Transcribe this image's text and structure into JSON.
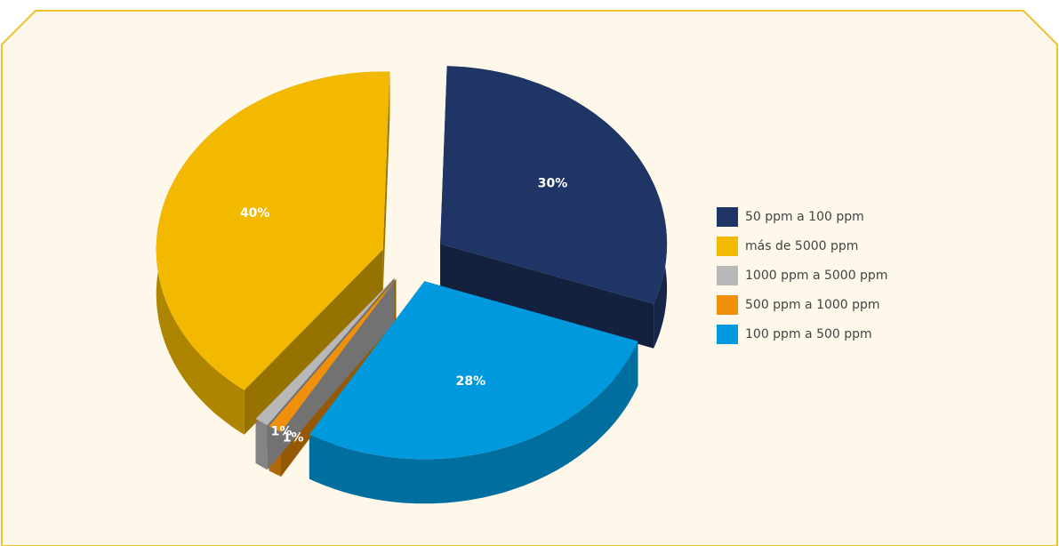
{
  "chart_data": {
    "type": "pie",
    "categories": [
      "50 ppm a 100 ppm",
      "más de 5000 ppm",
      "1000 ppm a 5000 ppm",
      "500 ppm a 1000 ppm",
      "100 ppm a 500 ppm"
    ],
    "values": [
      30,
      40,
      1,
      1,
      28
    ],
    "value_labels": [
      "30%",
      "40%",
      "1%",
      "1%",
      "28%"
    ],
    "colors": [
      "#1f3566",
      "#f2b900",
      "#b8b8b8",
      "#f0900a",
      "#0099dd"
    ],
    "legend": "right"
  }
}
